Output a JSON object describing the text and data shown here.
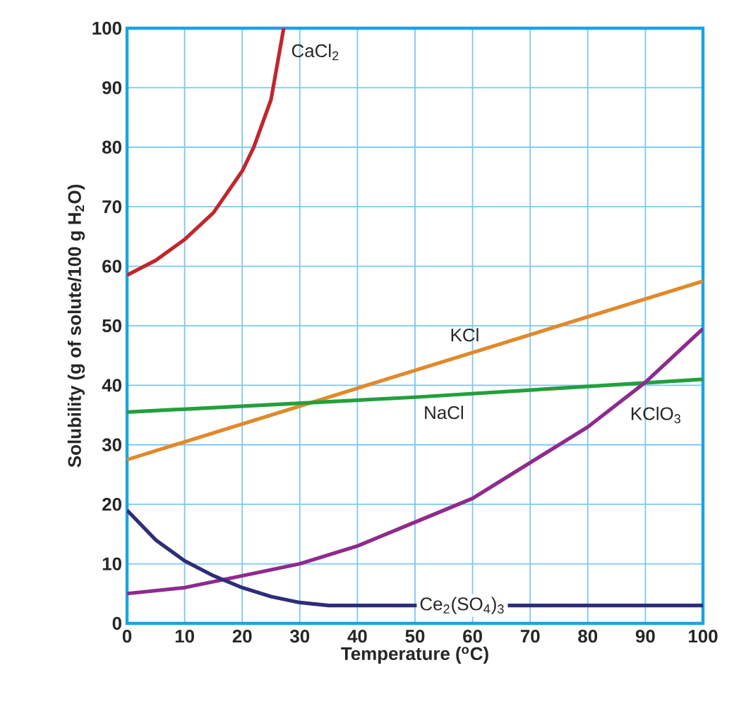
{
  "chart_data": {
    "type": "line",
    "xlabel": "Temperature ($^{o}$C)",
    "ylabel": "Solubility (g of solute/100 g H$_{2}$O)",
    "xlim": [
      0,
      100
    ],
    "ylim": [
      0,
      100
    ],
    "xticks": [
      0,
      10,
      20,
      30,
      40,
      50,
      60,
      70,
      80,
      90,
      100
    ],
    "yticks": [
      0,
      10,
      20,
      30,
      40,
      50,
      60,
      70,
      80,
      90,
      100
    ],
    "grid": true,
    "series": [
      {
        "name": "CaCl$_{2}$",
        "color": "#c0272d",
        "x": [
          0,
          5,
          10,
          15,
          20,
          22,
          25,
          27.2
        ],
        "values": [
          58.5,
          61,
          64.5,
          69,
          76,
          80,
          88,
          100
        ]
      },
      {
        "name": "KCl",
        "color": "#e08a2c",
        "x": [
          0,
          20,
          40,
          60,
          80,
          100
        ],
        "values": [
          27.5,
          33.5,
          39.5,
          45.5,
          51.5,
          57.5
        ]
      },
      {
        "name": "NaCl",
        "color": "#22a03c",
        "x": [
          0,
          50,
          100
        ],
        "values": [
          35.5,
          38,
          41
        ]
      },
      {
        "name": "KClO$_{3}$",
        "color": "#8e2a8e",
        "x": [
          0,
          10,
          20,
          30,
          40,
          50,
          60,
          70,
          80,
          90,
          100
        ],
        "values": [
          5,
          6,
          8,
          10,
          13,
          17,
          21,
          27,
          33,
          40.5,
          49.5
        ]
      },
      {
        "name": "Ce$_{2}$(SO$_{4}$)$_{3}$",
        "color": "#2e2d7a",
        "x": [
          0,
          5,
          10,
          15,
          20,
          25,
          30,
          35,
          40,
          100
        ],
        "values": [
          19,
          14,
          10.5,
          8,
          6,
          4.5,
          3.5,
          3,
          3,
          3
        ]
      }
    ]
  }
}
